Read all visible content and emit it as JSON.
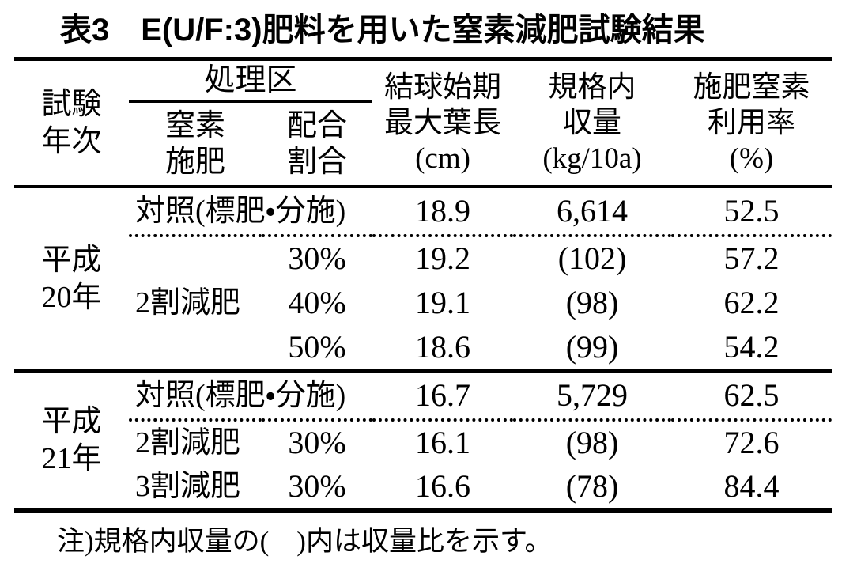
{
  "title": "表3　E(U/F:3)肥料を用いた窒素減肥試験結果",
  "header": {
    "trial_year_lines": [
      "試験",
      "年次"
    ],
    "treatment_group": "処理区",
    "nitrogen_lines": [
      "窒素",
      "施肥"
    ],
    "ratio_lines": [
      "配合",
      "割合"
    ],
    "leaf_lines": [
      "結球始期",
      "最大葉長",
      "(cm)"
    ],
    "yield_lines": [
      "規格内",
      "収量",
      "(kg/10a)"
    ],
    "utilization_lines": [
      "施肥窒素",
      "利用率",
      "(%)"
    ]
  },
  "groups": [
    {
      "year_lines": [
        "平成",
        "20年"
      ],
      "control_row": {
        "treatment": "対照(標肥・分施)",
        "leaf": "18.9",
        "yield": "6,614",
        "utilization": "52.5"
      },
      "reduction_label": "2割減肥",
      "reduction_rows": [
        {
          "ratio": "30%",
          "leaf": "19.2",
          "yield": "(102)",
          "utilization": "57.2"
        },
        {
          "ratio": "40%",
          "leaf": "19.1",
          "yield": "(98)",
          "utilization": "62.2"
        },
        {
          "ratio": "50%",
          "leaf": "18.6",
          "yield": "(99)",
          "utilization": "54.2"
        }
      ]
    },
    {
      "year_lines": [
        "平成",
        "21年"
      ],
      "control_row": {
        "treatment": "対照(標肥・分施)",
        "leaf": "16.7",
        "yield": "5,729",
        "utilization": "62.5"
      },
      "reduction_rows": [
        {
          "label": "2割減肥",
          "ratio": "30%",
          "leaf": "16.1",
          "yield": "(98)",
          "utilization": "72.6"
        },
        {
          "label": "3割減肥",
          "ratio": "30%",
          "leaf": "16.6",
          "yield": "(78)",
          "utilization": "84.4"
        }
      ]
    }
  ],
  "note": "注)規格内収量の(　)内は収量比を示す。"
}
